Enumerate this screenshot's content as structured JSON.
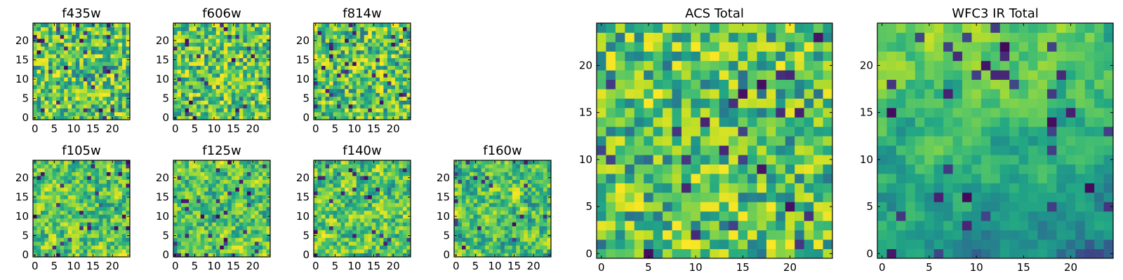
{
  "chart_data": [
    {
      "type": "heatmap",
      "title": "f435w",
      "grid_size": 25,
      "xlim": [
        0,
        24
      ],
      "ylim": [
        0,
        24
      ],
      "x_ticks": [
        "0",
        "5",
        "10",
        "15",
        "20"
      ],
      "y_ticks": [
        "0",
        "5",
        "10",
        "15",
        "20"
      ],
      "colormap": "viridis",
      "values_note": "25x25 per-pixel values not recoverable; rendered as representative texture",
      "texture": "fine-noise"
    },
    {
      "type": "heatmap",
      "title": "f606w",
      "grid_size": 25,
      "xlim": [
        0,
        24
      ],
      "ylim": [
        0,
        24
      ],
      "x_ticks": [
        "0",
        "5",
        "10",
        "15",
        "20"
      ],
      "y_ticks": [
        "0",
        "5",
        "10",
        "15",
        "20"
      ],
      "colormap": "viridis",
      "texture": "fine-noise"
    },
    {
      "type": "heatmap",
      "title": "f814w",
      "grid_size": 25,
      "xlim": [
        0,
        24
      ],
      "ylim": [
        0,
        24
      ],
      "x_ticks": [
        "0",
        "5",
        "10",
        "15",
        "20"
      ],
      "y_ticks": [
        "0",
        "5",
        "10",
        "15",
        "20"
      ],
      "colormap": "viridis",
      "texture": "fine-noise"
    },
    {
      "type": "heatmap",
      "title": "f105w",
      "grid_size": 25,
      "xlim": [
        0,
        24
      ],
      "ylim": [
        0,
        24
      ],
      "x_ticks": [
        "0",
        "5",
        "10",
        "15",
        "20"
      ],
      "y_ticks": [
        "0",
        "5",
        "10",
        "15",
        "20"
      ],
      "colormap": "viridis",
      "texture": "smooth-noise"
    },
    {
      "type": "heatmap",
      "title": "f125w",
      "grid_size": 25,
      "xlim": [
        0,
        24
      ],
      "ylim": [
        0,
        24
      ],
      "x_ticks": [
        "0",
        "5",
        "10",
        "15",
        "20"
      ],
      "y_ticks": [
        "0",
        "5",
        "10",
        "15",
        "20"
      ],
      "colormap": "viridis",
      "texture": "smooth-noise"
    },
    {
      "type": "heatmap",
      "title": "f140w",
      "grid_size": 25,
      "xlim": [
        0,
        24
      ],
      "ylim": [
        0,
        24
      ],
      "x_ticks": [
        "0",
        "5",
        "10",
        "15",
        "20"
      ],
      "y_ticks": [
        "0",
        "5",
        "10",
        "15",
        "20"
      ],
      "colormap": "viridis",
      "texture": "smooth-noise"
    },
    {
      "type": "heatmap",
      "title": "f160w",
      "grid_size": 25,
      "xlim": [
        0,
        24
      ],
      "ylim": [
        0,
        24
      ],
      "x_ticks": [
        "0",
        "5",
        "10",
        "15",
        "20"
      ],
      "y_ticks": [
        "0",
        "5",
        "10",
        "15",
        "20"
      ],
      "colormap": "viridis",
      "texture": "smooth-noise"
    },
    {
      "type": "heatmap",
      "title": "ACS Total",
      "grid_size": 25,
      "xlim": [
        0,
        24
      ],
      "ylim": [
        0,
        24
      ],
      "x_ticks": [
        "0",
        "5",
        "10",
        "15",
        "20"
      ],
      "y_ticks": [
        "0",
        "5",
        "10",
        "15",
        "20"
      ],
      "colormap": "viridis",
      "texture": "medium-noise"
    },
    {
      "type": "heatmap",
      "title": "WFC3 IR Total",
      "grid_size": 25,
      "xlim": [
        0,
        24
      ],
      "ylim": [
        0,
        24
      ],
      "x_ticks": [
        "0",
        "5",
        "10",
        "15",
        "20"
      ],
      "y_ticks": [
        "0",
        "5",
        "10",
        "15",
        "20"
      ],
      "colormap": "viridis",
      "texture": "smooth-gradient"
    }
  ],
  "colors": {
    "viridis_dark": "#440154",
    "viridis_mid": "#21918c",
    "viridis_light": "#fde725"
  }
}
